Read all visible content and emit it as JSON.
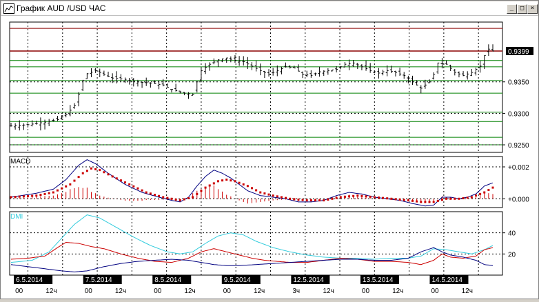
{
  "window": {
    "title": "График AUD /USD  ЧАС",
    "buttons": {
      "minimize": "_",
      "restore": "□",
      "close": "×"
    }
  },
  "colors": {
    "price_bar": "#000000",
    "current_price_line": "#8b0000",
    "fib_lines": "#008000",
    "macd_line": "#000080",
    "macd_signal": "#cc0000",
    "macd_hist": "#cc0000",
    "dmi_adx": "#33ccdd",
    "dmi_plus": "#cc0000",
    "dmi_minus": "#000080"
  },
  "current_price_label": "0.9399",
  "chart_data": [
    {
      "type": "candlestick",
      "title": "",
      "price_axis_ticks": [
        "0.9350",
        "0.9300",
        "0.9250"
      ],
      "ylim": [
        0.9238,
        0.9445
      ],
      "x_dates": [
        "6.5.2014",
        "7.5.2014",
        "8.5.2014",
        "9.5.2014",
        "12.5.2014",
        "13.5.2014",
        "14.5.2014"
      ],
      "x_time_labels": [
        "00",
        "12ч",
        "00",
        "12ч",
        "00",
        "12ч",
        "00",
        "12ч",
        "3ч",
        "12ч",
        "00",
        "12ч",
        "00",
        "12ч"
      ],
      "current_price": 0.9399,
      "horizontal_levels": [
        0.9435,
        0.9399,
        0.9384,
        0.9374,
        0.9352,
        0.9332,
        0.9302,
        0.9287,
        0.9262,
        0.925
      ],
      "close_path": [
        [
          0,
          0.928
        ],
        [
          4,
          0.9282
        ],
        [
          8,
          0.9286
        ],
        [
          11,
          0.929
        ],
        [
          13,
          0.9298
        ],
        [
          15,
          0.9312
        ],
        [
          16,
          0.933
        ],
        [
          17,
          0.9352
        ],
        [
          18,
          0.9363
        ],
        [
          20,
          0.9368
        ],
        [
          22,
          0.9362
        ],
        [
          24,
          0.9356
        ],
        [
          27,
          0.9354
        ],
        [
          30,
          0.935
        ],
        [
          33,
          0.9348
        ],
        [
          36,
          0.9345
        ],
        [
          38,
          0.9338
        ],
        [
          41,
          0.9332
        ],
        [
          43,
          0.933
        ],
        [
          44,
          0.935
        ],
        [
          45,
          0.9368
        ],
        [
          47,
          0.9378
        ],
        [
          49,
          0.9385
        ],
        [
          51,
          0.9388
        ],
        [
          53,
          0.9384
        ],
        [
          55,
          0.9382
        ],
        [
          57,
          0.9375
        ],
        [
          59,
          0.9368
        ],
        [
          61,
          0.9362
        ],
        [
          63,
          0.9368
        ],
        [
          65,
          0.9374
        ],
        [
          67,
          0.9372
        ],
        [
          69,
          0.9362
        ],
        [
          71,
          0.936
        ],
        [
          73,
          0.9366
        ],
        [
          75,
          0.9368
        ],
        [
          77,
          0.937
        ],
        [
          79,
          0.9378
        ],
        [
          81,
          0.938
        ],
        [
          83,
          0.9374
        ],
        [
          85,
          0.9368
        ],
        [
          87,
          0.9364
        ],
        [
          89,
          0.9368
        ],
        [
          91,
          0.9365
        ],
        [
          93,
          0.936
        ],
        [
          95,
          0.935
        ],
        [
          97,
          0.934
        ],
        [
          99,
          0.935
        ],
        [
          100,
          0.9362
        ],
        [
          101,
          0.938
        ],
        [
          103,
          0.9378
        ],
        [
          105,
          0.9365
        ],
        [
          107,
          0.936
        ],
        [
          109,
          0.9365
        ],
        [
          111,
          0.9375
        ],
        [
          112,
          0.9392
        ],
        [
          113,
          0.9402
        ],
        [
          114,
          0.9399
        ]
      ]
    },
    {
      "type": "line",
      "title": "MACD",
      "ticks": [
        "+0.002",
        "+0.000"
      ],
      "ylim": [
        -0.00055,
        0.00265
      ],
      "series": [
        {
          "name": "",
          "role": "macd",
          "points": [
            [
              0,
              0.0001
            ],
            [
              6,
              0.00035
            ],
            [
              10,
              0.0006
            ],
            [
              13,
              0.0012
            ],
            [
              16,
              0.0021
            ],
            [
              18,
              0.00245
            ],
            [
              20,
              0.0022
            ],
            [
              23,
              0.0016
            ],
            [
              27,
              0.0009
            ],
            [
              31,
              0.0004
            ],
            [
              35,
              0.0001
            ],
            [
              38,
              -0.0001
            ],
            [
              40,
              -0.0002
            ],
            [
              42,
              0.0001
            ],
            [
              44,
              0.0008
            ],
            [
              46,
              0.0014
            ],
            [
              48,
              0.0018
            ],
            [
              50,
              0.0016
            ],
            [
              52,
              0.0013
            ],
            [
              54,
              0.0009
            ],
            [
              56,
              0.0005
            ],
            [
              59,
              0.0002
            ],
            [
              62,
              0.0001
            ],
            [
              65,
              0.0
            ],
            [
              68,
              -0.0002
            ],
            [
              71,
              -0.0002
            ],
            [
              74,
              -0.0001
            ],
            [
              77,
              0.0002
            ],
            [
              80,
              0.0004
            ],
            [
              83,
              0.0003
            ],
            [
              86,
              0.0001
            ],
            [
              89,
              0.0
            ],
            [
              92,
              -0.0001
            ],
            [
              95,
              -0.0003
            ],
            [
              98,
              -0.00045
            ],
            [
              100,
              -0.0004
            ],
            [
              102,
              0.0001
            ],
            [
              104,
              0.0001
            ],
            [
              106,
              0.0
            ],
            [
              108,
              0.0001
            ],
            [
              110,
              0.0003
            ],
            [
              112,
              0.0008
            ],
            [
              114,
              0.001
            ]
          ]
        },
        {
          "name": "",
          "role": "signal",
          "points": [
            [
              0,
              0.0001
            ],
            [
              6,
              0.0002
            ],
            [
              10,
              0.0004
            ],
            [
              14,
              0.0009
            ],
            [
              17,
              0.0016
            ],
            [
              19,
              0.0019
            ],
            [
              21,
              0.0018
            ],
            [
              24,
              0.0014
            ],
            [
              28,
              0.0009
            ],
            [
              32,
              0.0004
            ],
            [
              36,
              0.0001
            ],
            [
              40,
              -0.0001
            ],
            [
              43,
              0.0001
            ],
            [
              46,
              0.0007
            ],
            [
              49,
              0.0011
            ],
            [
              51,
              0.0012
            ],
            [
              53,
              0.0011
            ],
            [
              56,
              0.0008
            ],
            [
              59,
              0.0004
            ],
            [
              62,
              0.0002
            ],
            [
              66,
              0.0
            ],
            [
              70,
              -0.0001
            ],
            [
              74,
              -0.0001
            ],
            [
              78,
              0.0001
            ],
            [
              82,
              0.0002
            ],
            [
              86,
              0.0001
            ],
            [
              90,
              0.0
            ],
            [
              94,
              -0.0001
            ],
            [
              97,
              -0.0002
            ],
            [
              100,
              -0.0002
            ],
            [
              103,
              0.0
            ],
            [
              106,
              0.0
            ],
            [
              109,
              0.0001
            ],
            [
              112,
              0.0004
            ],
            [
              114,
              0.0007
            ]
          ]
        }
      ],
      "hist_scale": 0.5
    },
    {
      "type": "line",
      "title": "DMI",
      "ticks": [
        "40",
        "20"
      ],
      "ylim": [
        0,
        60
      ],
      "series": [
        {
          "name": "",
          "role": "adx",
          "points": [
            [
              0,
              12
            ],
            [
              5,
              14
            ],
            [
              9,
              22
            ],
            [
              12,
              35
            ],
            [
              15,
              48
            ],
            [
              18,
              57
            ],
            [
              21,
              54
            ],
            [
              25,
              45
            ],
            [
              29,
              36
            ],
            [
              33,
              28
            ],
            [
              37,
              22
            ],
            [
              40,
              20
            ],
            [
              43,
              22
            ],
            [
              46,
              30
            ],
            [
              49,
              37
            ],
            [
              52,
              40
            ],
            [
              55,
              38
            ],
            [
              58,
              32
            ],
            [
              62,
              26
            ],
            [
              66,
              22
            ],
            [
              70,
              19
            ],
            [
              74,
              17
            ],
            [
              78,
              16
            ],
            [
              82,
              16
            ],
            [
              86,
              15
            ],
            [
              90,
              16
            ],
            [
              94,
              16
            ],
            [
              97,
              18
            ],
            [
              100,
              25
            ],
            [
              103,
              24
            ],
            [
              106,
              22
            ],
            [
              109,
              20
            ],
            [
              112,
              24
            ],
            [
              114,
              28
            ]
          ]
        },
        {
          "name": "",
          "role": "plus_di",
          "points": [
            [
              0,
              15
            ],
            [
              4,
              16
            ],
            [
              8,
              18
            ],
            [
              11,
              26
            ],
            [
              13,
              31
            ],
            [
              16,
              30
            ],
            [
              19,
              27
            ],
            [
              22,
              25
            ],
            [
              26,
              20
            ],
            [
              30,
              16
            ],
            [
              34,
              13
            ],
            [
              38,
              12
            ],
            [
              42,
              16
            ],
            [
              45,
              22
            ],
            [
              48,
              25
            ],
            [
              51,
              22
            ],
            [
              54,
              19
            ],
            [
              57,
              16
            ],
            [
              60,
              14
            ],
            [
              63,
              13
            ],
            [
              66,
              12
            ],
            [
              70,
              12
            ],
            [
              74,
              14
            ],
            [
              78,
              16
            ],
            [
              82,
              15
            ],
            [
              86,
              13
            ],
            [
              90,
              13
            ],
            [
              94,
              12
            ],
            [
              97,
              10
            ],
            [
              100,
              14
            ],
            [
              102,
              20
            ],
            [
              104,
              17
            ],
            [
              107,
              16
            ],
            [
              110,
              18
            ],
            [
              112,
              24
            ],
            [
              114,
              26
            ]
          ]
        },
        {
          "name": "",
          "role": "minus_di",
          "points": [
            [
              0,
              10
            ],
            [
              4,
              8
            ],
            [
              8,
              6
            ],
            [
              12,
              4
            ],
            [
              15,
              3
            ],
            [
              18,
              4
            ],
            [
              22,
              8
            ],
            [
              26,
              11
            ],
            [
              30,
              13
            ],
            [
              34,
              14
            ],
            [
              38,
              15
            ],
            [
              42,
              14
            ],
            [
              45,
              12
            ],
            [
              48,
              10
            ],
            [
              51,
              9
            ],
            [
              54,
              9
            ],
            [
              58,
              10
            ],
            [
              62,
              11
            ],
            [
              66,
              12
            ],
            [
              70,
              13
            ],
            [
              74,
              14
            ],
            [
              78,
              15
            ],
            [
              82,
              15
            ],
            [
              86,
              14
            ],
            [
              90,
              14
            ],
            [
              94,
              16
            ],
            [
              97,
              22
            ],
            [
              100,
              26
            ],
            [
              102,
              22
            ],
            [
              104,
              19
            ],
            [
              107,
              17
            ],
            [
              110,
              14
            ],
            [
              112,
              10
            ],
            [
              114,
              9
            ]
          ]
        }
      ]
    }
  ]
}
